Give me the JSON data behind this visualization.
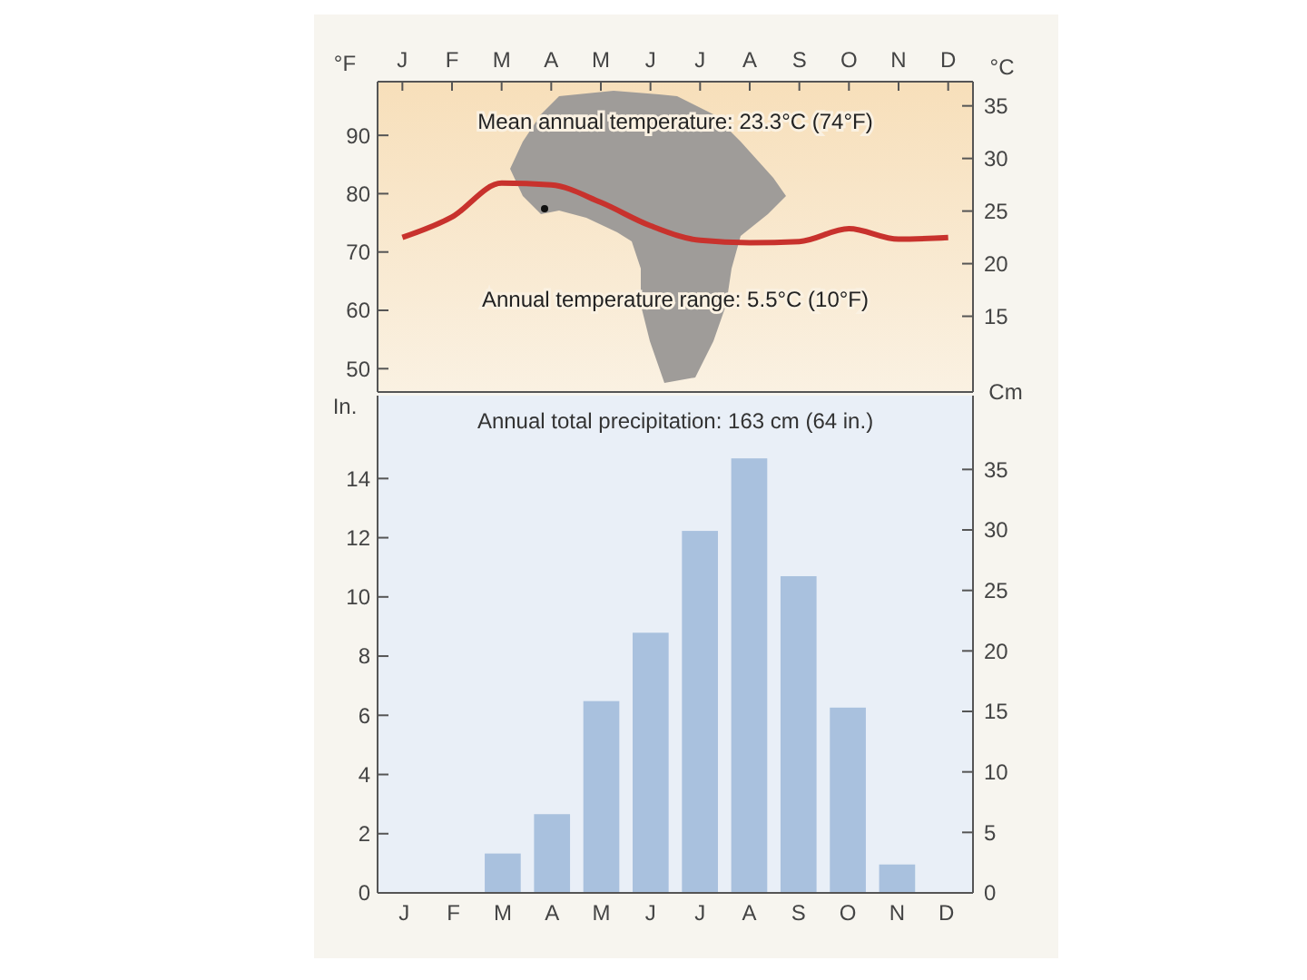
{
  "chart_data": [
    {
      "type": "line",
      "ylabel": "°F",
      "y2label": "°C",
      "categories": [
        "J",
        "F",
        "M",
        "A",
        "M",
        "J",
        "J",
        "A",
        "S",
        "O",
        "N",
        "D"
      ],
      "ylim": [
        46,
        99.2
      ],
      "yticks": [
        50,
        60,
        70,
        80,
        90
      ],
      "y2lim": [
        7.8,
        37.3
      ],
      "y2ticks": [
        15,
        20,
        25,
        30,
        35
      ],
      "series": [
        {
          "color": "#c8322d",
          "values": [
            72.5,
            76,
            81.8,
            81.5,
            78.5,
            74.5,
            72,
            71.6,
            71.8,
            74,
            72.2,
            72.5
          ]
        }
      ],
      "annotations": [
        "Mean annual temperature: 23.3°C (74°F)",
        "Annual temperature range: 5.5°C (10°F)"
      ],
      "marker": "none",
      "line_style": "solid"
    },
    {
      "type": "bar",
      "ylabel": "In.",
      "y2label": "Cm",
      "categories": [
        "J",
        "F",
        "M",
        "A",
        "M",
        "J",
        "J",
        "A",
        "S",
        "O",
        "N",
        "D"
      ],
      "series": [
        {
          "color": "#a9c1de",
          "values": [
            0,
            0,
            1.33,
            2.66,
            6.48,
            8.79,
            12.23,
            14.68,
            10.7,
            6.26,
            0.96,
            0
          ]
        }
      ],
      "ylim": [
        0,
        16.8
      ],
      "yticks": [
        0,
        2,
        4,
        6,
        8,
        10,
        12,
        14
      ],
      "y2lim": [
        0,
        41.1
      ],
      "y2ticks": [
        0,
        5,
        10,
        15,
        20,
        25,
        30,
        35
      ],
      "annotations": [
        "Annual total precipitation: 163 cm (64 in.)"
      ]
    }
  ]
}
